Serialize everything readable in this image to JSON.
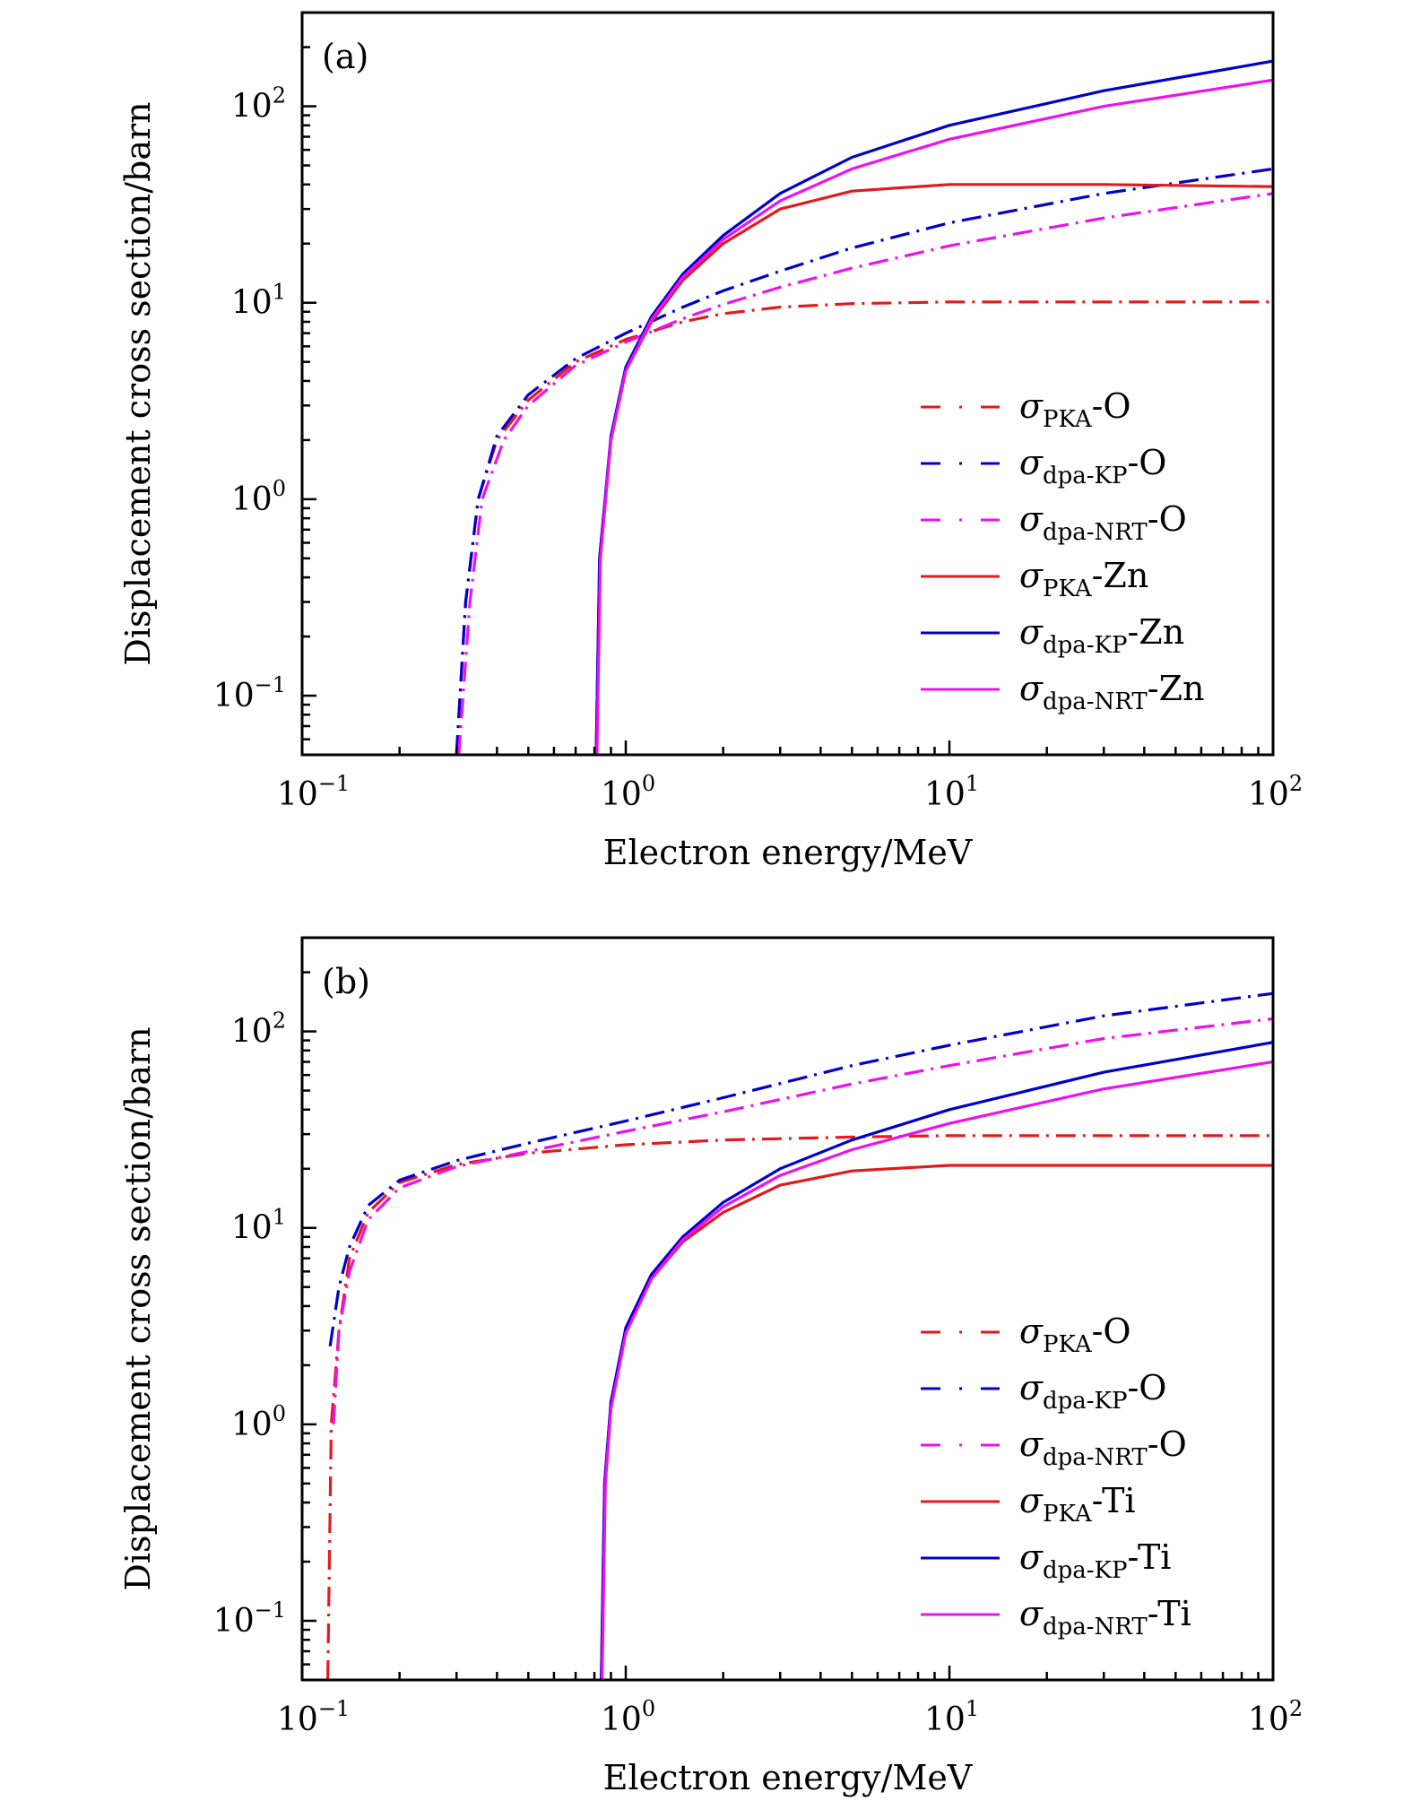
{
  "chart_data": [
    {
      "type": "line",
      "panel_label": "(a)",
      "xlabel": "Electron energy/MeV",
      "ylabel": "Displacement cross section/barn",
      "xscale": "log",
      "yscale": "log",
      "xlim": [
        0.1,
        100
      ],
      "ylim": [
        0.05,
        300
      ],
      "xticks": [
        {
          "value": 0.1,
          "base": "10",
          "exp": "−1"
        },
        {
          "value": 1,
          "base": "10",
          "exp": "0"
        },
        {
          "value": 10,
          "base": "10",
          "exp": "1"
        },
        {
          "value": 100,
          "base": "10",
          "exp": "2"
        }
      ],
      "yticks": [
        {
          "value": 0.1,
          "base": "10",
          "exp": "−1"
        },
        {
          "value": 1,
          "base": "10",
          "exp": "0"
        },
        {
          "value": 10,
          "base": "10",
          "exp": "1"
        },
        {
          "value": 100,
          "base": "10",
          "exp": "2"
        }
      ],
      "grid": false,
      "legend_position": "lower-right",
      "series": [
        {
          "name": "PKA-O",
          "sigma_sub": "PKA",
          "suffix": "-O",
          "color": "#e31a1c",
          "style": "dashdot",
          "x": [
            0.3,
            0.32,
            0.35,
            0.4,
            0.5,
            0.7,
            1,
            1.5,
            2,
            3,
            5,
            10,
            30,
            100
          ],
          "y": [
            0.05,
            0.3,
            1,
            2,
            3.2,
            5,
            6.5,
            8,
            8.8,
            9.5,
            9.9,
            10.1,
            10.1,
            10.1
          ]
        },
        {
          "name": "dpa-KP-O",
          "sigma_sub": "dpa-KP",
          "suffix": "-O",
          "color": "#0000cc",
          "style": "dashdot",
          "x": [
            0.3,
            0.32,
            0.35,
            0.4,
            0.5,
            0.7,
            1,
            1.5,
            2,
            3,
            5,
            10,
            30,
            100
          ],
          "y": [
            0.05,
            0.3,
            1,
            2.1,
            3.4,
            5.2,
            7,
            9.5,
            11.5,
            14.5,
            19,
            25.5,
            36,
            48
          ]
        },
        {
          "name": "dpa-NRT-O",
          "sigma_sub": "dpa-NRT",
          "suffix": "-O",
          "color": "#ee11ee",
          "style": "dashdot",
          "x": [
            0.305,
            0.33,
            0.36,
            0.42,
            0.5,
            0.7,
            1,
            1.5,
            2,
            3,
            5,
            10,
            30,
            100
          ],
          "y": [
            0.05,
            0.3,
            1,
            2,
            3,
            4.8,
            6.3,
            8.3,
            9.8,
            12,
            15,
            19.5,
            27,
            36
          ]
        },
        {
          "name": "PKA-Zn",
          "sigma_sub": "PKA",
          "suffix": "-Zn",
          "color": "#e31a1c",
          "style": "solid",
          "x": [
            0.81,
            0.83,
            0.9,
            1,
            1.2,
            1.5,
            2,
            3,
            5,
            10,
            30,
            100
          ],
          "y": [
            0.05,
            0.5,
            2,
            4.5,
            8,
            13,
            20,
            30,
            37,
            40,
            40,
            39
          ]
        },
        {
          "name": "dpa-KP-Zn",
          "sigma_sub": "dpa-KP",
          "suffix": "-Zn",
          "color": "#0000cc",
          "style": "solid",
          "x": [
            0.81,
            0.83,
            0.9,
            1,
            1.2,
            1.5,
            2,
            3,
            5,
            10,
            30,
            100
          ],
          "y": [
            0.05,
            0.5,
            2.1,
            4.7,
            8.5,
            14,
            22,
            36,
            55,
            80,
            120,
            170
          ]
        },
        {
          "name": "dpa-NRT-Zn",
          "sigma_sub": "dpa-NRT",
          "suffix": "-Zn",
          "color": "#ee11ee",
          "style": "solid",
          "x": [
            0.815,
            0.835,
            0.9,
            1,
            1.2,
            1.5,
            2,
            3,
            5,
            10,
            30,
            100
          ],
          "y": [
            0.05,
            0.5,
            2,
            4.5,
            8.2,
            13.5,
            21,
            33,
            48,
            68,
            100,
            136
          ]
        }
      ]
    },
    {
      "type": "line",
      "panel_label": "(b)",
      "xlabel": "Electron energy/MeV",
      "ylabel": "Displacement cross section/barn",
      "xscale": "log",
      "yscale": "log",
      "xlim": [
        0.1,
        100
      ],
      "ylim": [
        0.05,
        300
      ],
      "xticks": [
        {
          "value": 0.1,
          "base": "10",
          "exp": "−1"
        },
        {
          "value": 1,
          "base": "10",
          "exp": "0"
        },
        {
          "value": 10,
          "base": "10",
          "exp": "1"
        },
        {
          "value": 100,
          "base": "10",
          "exp": "2"
        }
      ],
      "yticks": [
        {
          "value": 0.1,
          "base": "10",
          "exp": "−1"
        },
        {
          "value": 1,
          "base": "10",
          "exp": "0"
        },
        {
          "value": 10,
          "base": "10",
          "exp": "1"
        },
        {
          "value": 100,
          "base": "10",
          "exp": "2"
        }
      ],
      "grid": false,
      "legend_position": "lower-right",
      "series": [
        {
          "name": "PKA-O",
          "sigma_sub": "PKA",
          "suffix": "-O",
          "color": "#e31a1c",
          "style": "dashdot",
          "x": [
            0.12,
            0.123,
            0.13,
            0.14,
            0.16,
            0.2,
            0.3,
            0.5,
            1,
            2,
            5,
            10,
            100
          ],
          "y": [
            0.05,
            1,
            3,
            7,
            12,
            17,
            21,
            24,
            26.5,
            28,
            29,
            29.5,
            29.5
          ]
        },
        {
          "name": "dpa-KP-O",
          "sigma_sub": "dpa-KP",
          "suffix": "-O",
          "color": "#0000cc",
          "style": "dashdot",
          "x": [
            0.122,
            0.13,
            0.14,
            0.16,
            0.2,
            0.3,
            0.5,
            1,
            2,
            5,
            10,
            30,
            100
          ],
          "y": [
            2.5,
            5,
            8,
            13,
            17.5,
            22,
            27,
            35,
            46,
            67,
            85,
            120,
            156
          ]
        },
        {
          "name": "dpa-NRT-O",
          "sigma_sub": "dpa-NRT",
          "suffix": "-O",
          "color": "#ee11ee",
          "style": "dashdot",
          "x": [
            0.125,
            0.13,
            0.14,
            0.16,
            0.2,
            0.3,
            0.5,
            1,
            2,
            5,
            10,
            30,
            100
          ],
          "y": [
            1,
            3,
            6,
            11,
            16,
            20.5,
            24.5,
            31,
            39,
            54,
            67,
            92,
            116
          ]
        },
        {
          "name": "PKA-Ti",
          "sigma_sub": "PKA",
          "suffix": "-Ti",
          "color": "#e31a1c",
          "style": "solid",
          "x": [
            0.84,
            0.86,
            0.9,
            1,
            1.2,
            1.5,
            2,
            3,
            5,
            10,
            100
          ],
          "y": [
            0.05,
            0.5,
            1.3,
            3,
            5.5,
            8.5,
            12,
            16.5,
            19.5,
            20.8,
            20.8
          ]
        },
        {
          "name": "dpa-KP-Ti",
          "sigma_sub": "dpa-KP",
          "suffix": "-Ti",
          "color": "#0000cc",
          "style": "solid",
          "x": [
            0.84,
            0.86,
            0.9,
            1,
            1.2,
            1.5,
            2,
            3,
            5,
            10,
            30,
            100
          ],
          "y": [
            0.05,
            0.5,
            1.3,
            3.1,
            5.8,
            9,
            13.5,
            20,
            28,
            40,
            62,
            88
          ]
        },
        {
          "name": "dpa-NRT-Ti",
          "sigma_sub": "dpa-NRT",
          "suffix": "-Ti",
          "color": "#ee11ee",
          "style": "solid",
          "x": [
            0.845,
            0.865,
            0.9,
            1,
            1.2,
            1.5,
            2,
            3,
            5,
            10,
            30,
            100
          ],
          "y": [
            0.05,
            0.5,
            1.2,
            2.9,
            5.5,
            8.7,
            12.8,
            18.5,
            25,
            34,
            51,
            70
          ]
        }
      ]
    }
  ]
}
